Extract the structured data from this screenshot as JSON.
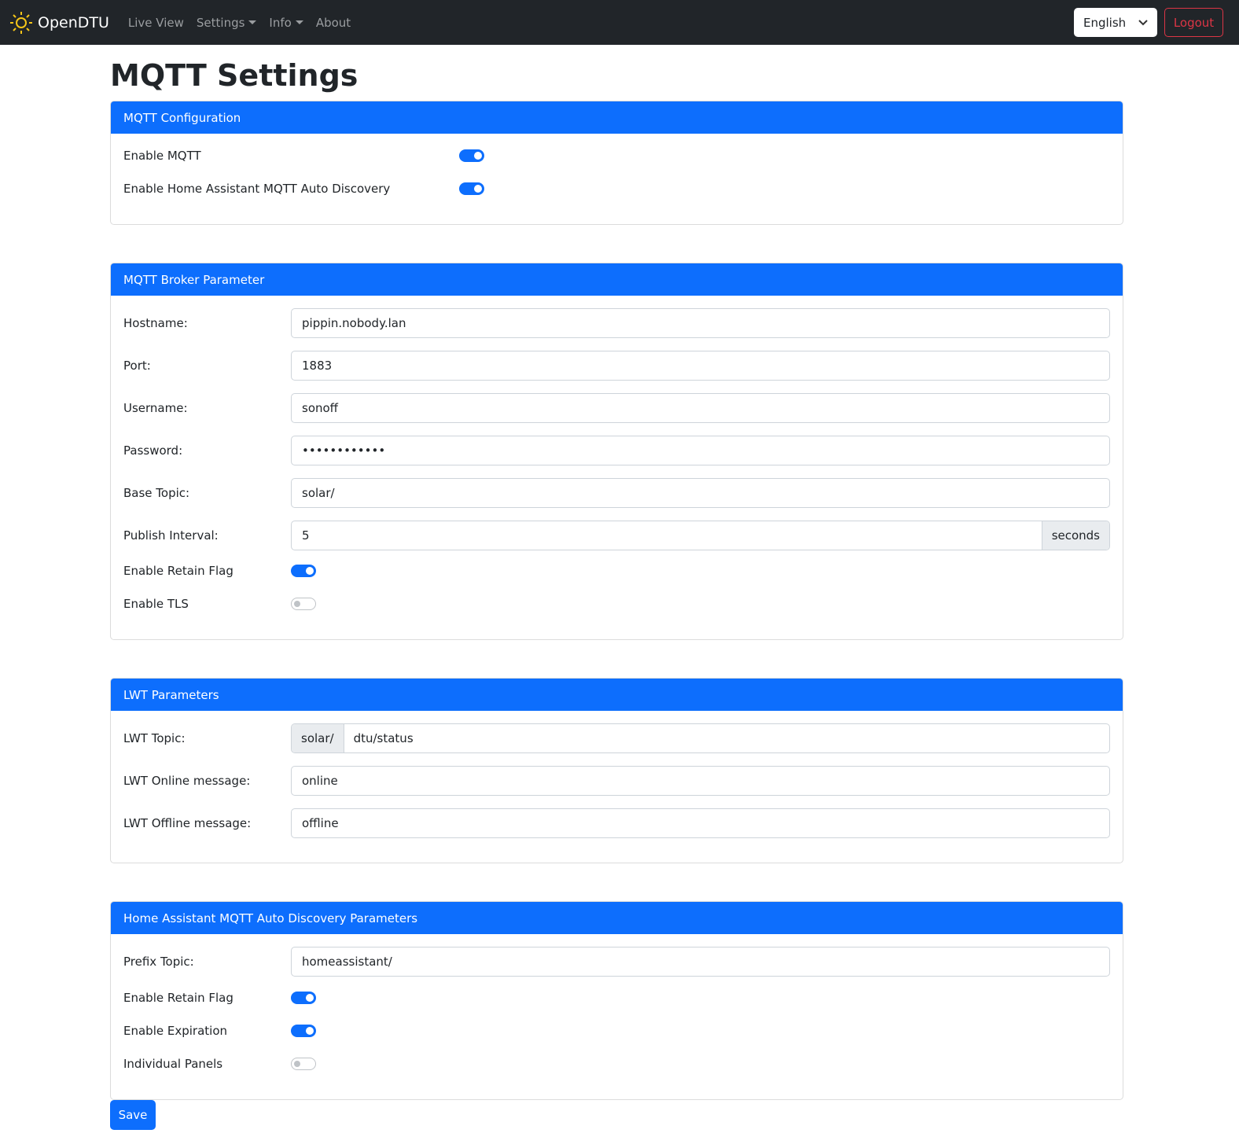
{
  "nav": {
    "brand": "OpenDTU",
    "live": "Live View",
    "settings": "Settings",
    "info": "Info",
    "about": "About",
    "language": "English",
    "logout": "Logout"
  },
  "title": "MQTT Settings",
  "config": {
    "header": "MQTT Configuration",
    "enable_mqtt": {
      "label": "Enable MQTT",
      "on": true
    },
    "enable_ha": {
      "label": "Enable Home Assistant MQTT Auto Discovery",
      "on": true
    }
  },
  "broker": {
    "header": "MQTT Broker Parameter",
    "hostname": {
      "label": "Hostname:",
      "value": "pippin.nobody.lan"
    },
    "port": {
      "label": "Port:",
      "value": "1883"
    },
    "username": {
      "label": "Username:",
      "value": "sonoff"
    },
    "password": {
      "label": "Password:",
      "value": "••••••••••••"
    },
    "base_topic": {
      "label": "Base Topic:",
      "value": "solar/"
    },
    "interval": {
      "label": "Publish Interval:",
      "value": "5",
      "unit": "seconds"
    },
    "retain": {
      "label": "Enable Retain Flag",
      "on": true
    },
    "tls": {
      "label": "Enable TLS",
      "on": false
    }
  },
  "lwt": {
    "header": "LWT Parameters",
    "topic": {
      "label": "LWT Topic:",
      "prefix": "solar/",
      "value": "dtu/status"
    },
    "online": {
      "label": "LWT Online message:",
      "value": "online"
    },
    "offline": {
      "label": "LWT Offline message:",
      "value": "offline"
    }
  },
  "ha": {
    "header": "Home Assistant MQTT Auto Discovery Parameters",
    "prefix": {
      "label": "Prefix Topic:",
      "value": "homeassistant/"
    },
    "retain": {
      "label": "Enable Retain Flag",
      "on": true
    },
    "expiration": {
      "label": "Enable Expiration",
      "on": true
    },
    "panels": {
      "label": "Individual Panels",
      "on": false
    }
  },
  "save": "Save",
  "colors": {
    "primary": "#0d6efd",
    "navbar": "#212529",
    "danger": "#dc3545",
    "logo": "#f5c518"
  }
}
